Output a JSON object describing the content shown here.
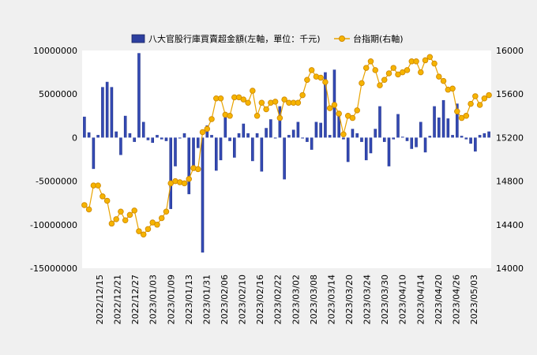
{
  "chart_data": {
    "type": "bar+line",
    "legend": {
      "placement": "top",
      "items": [
        {
          "label": "八大官股行庫買賣超金額(左軸，單位：千元)",
          "kind": "bar"
        },
        {
          "label": "台指期(右軸)",
          "kind": "line"
        }
      ]
    },
    "left_axis": {
      "min": -15000000,
      "max": 10000000,
      "ticks": [
        "10000000",
        "5000000",
        "0",
        "-5000000",
        "-10000000",
        "-15000000"
      ]
    },
    "right_axis": {
      "min": 14000,
      "max": 16000,
      "ticks": [
        "16000",
        "15600",
        "15200",
        "14800",
        "14400",
        "14000"
      ]
    },
    "x_tick_labels": [
      "2022/12/15",
      "2022/12/21",
      "2022/12/27",
      "2023/01/03",
      "2023/01/09",
      "2023/01/13",
      "2023/01/31",
      "2023/02/06",
      "2023/02/10",
      "2023/02/16",
      "2023/02/22",
      "2023/03/02",
      "2023/03/08",
      "2023/03/14",
      "2023/03/20",
      "2023/03/24",
      "2023/03/30",
      "2023/04/10",
      "2023/04/14",
      "2023/04/20",
      "2023/04/26",
      "2023/05/03"
    ],
    "bar_values": [
      2400000,
      600000,
      -3600000,
      300000,
      5800000,
      6400000,
      5800000,
      700000,
      -2000000,
      2500000,
      500000,
      -500000,
      9700000,
      1800000,
      -300000,
      -600000,
      300000,
      -200000,
      -400000,
      -8200000,
      -3300000,
      -100000,
      500000,
      -6500000,
      -3800000,
      -1200000,
      -13200000,
      1400000,
      300000,
      -3800000,
      -2600000,
      2500000,
      -400000,
      -2300000,
      500000,
      1600000,
      500000,
      -2700000,
      500000,
      -3900000,
      1100000,
      2100000,
      -100000,
      3600000,
      -4800000,
      300000,
      900000,
      1800000,
      -100000,
      -500000,
      -1400000,
      1800000,
      1700000,
      7500000,
      300000,
      7800000,
      2800000,
      -200000,
      -2800000,
      1000000,
      500000,
      -500000,
      -2600000,
      -1800000,
      1000000,
      3600000,
      -500000,
      -3300000,
      -200000,
      2700000,
      100000,
      -400000,
      -1300000,
      -1100000,
      1800000,
      -1700000,
      200000,
      3600000,
      2300000,
      4300000,
      2200000,
      300000,
      3900000,
      200000,
      -200000,
      -700000,
      -1600000,
      300000,
      500000,
      700000
    ],
    "line_values": [
      14580,
      14540,
      14760,
      14760,
      14660,
      14620,
      14410,
      14450,
      14520,
      14440,
      14490,
      14530,
      14340,
      14310,
      14360,
      14420,
      14400,
      14460,
      14520,
      14780,
      14800,
      14790,
      14780,
      14820,
      14920,
      14910,
      15250,
      15280,
      15370,
      15560,
      15560,
      15410,
      15400,
      15570,
      15570,
      15550,
      15520,
      15630,
      15400,
      15520,
      15460,
      15520,
      15530,
      15380,
      15550,
      15520,
      15520,
      15520,
      15590,
      15730,
      15820,
      15760,
      15750,
      15710,
      15470,
      15500,
      15420,
      15230,
      15400,
      15380,
      15450,
      15700,
      15840,
      15900,
      15820,
      15680,
      15730,
      15790,
      15840,
      15780,
      15800,
      15820,
      15900,
      15900,
      15800,
      15910,
      15940,
      15880,
      15760,
      15720,
      15640,
      15650,
      15440,
      15380,
      15400,
      15510,
      15580,
      15500,
      15560,
      15590
    ]
  }
}
